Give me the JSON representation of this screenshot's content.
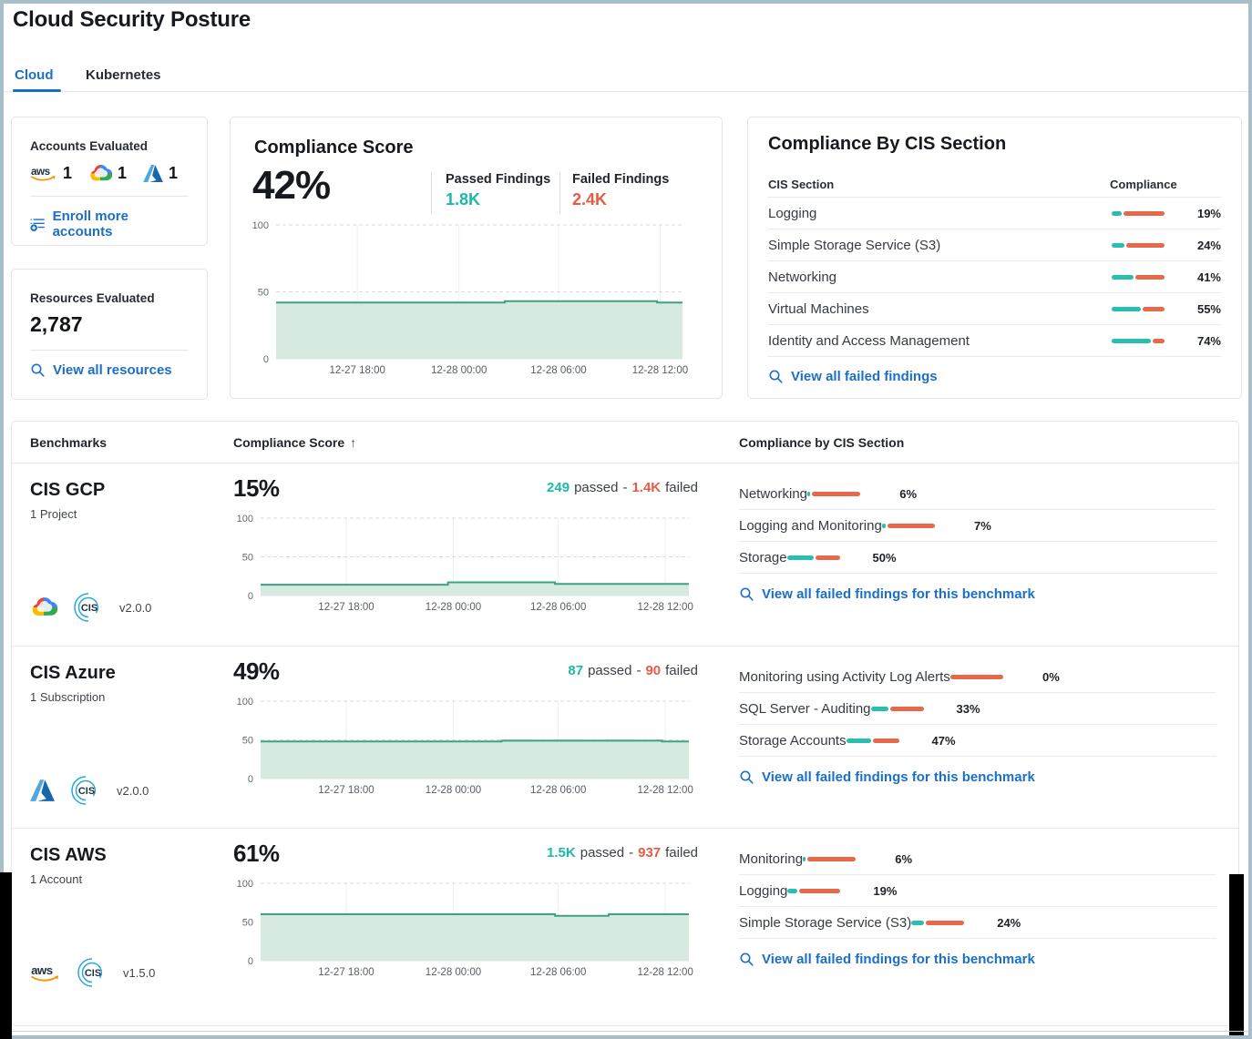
{
  "header": {
    "title": "Cloud Security Posture",
    "tabs": [
      {
        "label": "Cloud",
        "active": true
      },
      {
        "label": "Kubernetes",
        "active": false
      }
    ]
  },
  "accounts_card": {
    "title": "Accounts Evaluated",
    "aws_count": "1",
    "gcp_count": "1",
    "azure_count": "1",
    "enroll_link": "Enroll more accounts"
  },
  "resources_card": {
    "title": "Resources Evaluated",
    "value": "2,787",
    "link": "View all resources"
  },
  "chart_axis": {
    "ymax": 100,
    "yticks": [
      0,
      50,
      100
    ]
  },
  "time_axis": {
    "labels": [
      "12-27 18:00",
      "12-28 00:00",
      "12-28 06:00",
      "12-28 12:00"
    ],
    "fractions": [
      0.2,
      0.45,
      0.695,
      0.945
    ]
  },
  "score_card": {
    "title": "Compliance Score",
    "score": "42%",
    "passed_label": "Passed Findings",
    "passed_value": "1.8K",
    "failed_label": "Failed Findings",
    "failed_value": "2.4K",
    "chart": {
      "type": "area",
      "ylim": [
        0,
        100
      ],
      "values": [
        42,
        42,
        42,
        42,
        42,
        43,
        43,
        43,
        42
      ]
    }
  },
  "cis_card": {
    "title": "Compliance By CIS Section",
    "section_col": "CIS Section",
    "compliance_col": "Compliance",
    "rows": [
      {
        "label": "Logging",
        "pct": 19,
        "pct_label": "19%"
      },
      {
        "label": "Simple Storage Service (S3)",
        "pct": 24,
        "pct_label": "24%"
      },
      {
        "label": "Networking",
        "pct": 41,
        "pct_label": "41%"
      },
      {
        "label": "Virtual Machines",
        "pct": 55,
        "pct_label": "55%"
      },
      {
        "label": "Identity and Access Management",
        "pct": 74,
        "pct_label": "74%"
      }
    ],
    "link": "View all failed findings"
  },
  "benchmarks": {
    "col_benchmarks": "Benchmarks",
    "col_score": "Compliance Score",
    "sort_arrow": "↑",
    "col_sections": "Compliance by CIS Section",
    "passed_word": "passed",
    "separator": "-",
    "failed_word": "failed",
    "link_label": "View all failed findings for this benchmark",
    "rows": [
      {
        "name": "CIS GCP",
        "scope": "1 Project",
        "provider": "gcp",
        "version": "v2.0.0",
        "score": "15%",
        "passed": "249",
        "failed": "1.4K",
        "chart": {
          "type": "area",
          "ylim": [
            0,
            100
          ],
          "values": [
            14,
            14,
            14,
            14,
            17,
            17,
            15,
            15,
            15
          ]
        },
        "sections": [
          {
            "label": "Networking",
            "pct": 6,
            "pct_label": "6%"
          },
          {
            "label": "Logging and Monitoring",
            "pct": 7,
            "pct_label": "7%"
          },
          {
            "label": "Storage",
            "pct": 50,
            "pct_label": "50%"
          }
        ]
      },
      {
        "name": "CIS Azure",
        "scope": "1 Subscription",
        "provider": "azure",
        "version": "v2.0.0",
        "score": "49%",
        "passed": "87",
        "failed": "90",
        "chart": {
          "type": "area",
          "ylim": [
            0,
            100
          ],
          "values": [
            48,
            48,
            48,
            48,
            48,
            49,
            49,
            49,
            48
          ]
        },
        "sections": [
          {
            "label": "Monitoring using Activity Log Alerts",
            "pct": 0,
            "pct_label": "0%"
          },
          {
            "label": "SQL Server - Auditing",
            "pct": 33,
            "pct_label": "33%"
          },
          {
            "label": "Storage Accounts",
            "pct": 47,
            "pct_label": "47%"
          }
        ]
      },
      {
        "name": "CIS AWS",
        "scope": "1 Account",
        "provider": "aws",
        "version": "v1.5.0",
        "score": "61%",
        "passed": "1.5K",
        "failed": "937",
        "chart": {
          "type": "area",
          "ylim": [
            0,
            100
          ],
          "values": [
            60,
            60,
            60,
            60,
            60,
            60,
            58,
            60,
            60
          ]
        },
        "sections": [
          {
            "label": "Monitoring",
            "pct": 6,
            "pct_label": "6%"
          },
          {
            "label": "Logging",
            "pct": 19,
            "pct_label": "19%"
          },
          {
            "label": "Simple Storage Service (S3)",
            "pct": 24,
            "pct_label": "24%"
          }
        ]
      }
    ]
  },
  "colors": {
    "accent_blue": "#1b6fc6",
    "teal": "#1cb9a8",
    "red": "#e85c44",
    "bar_teal": "#29bfae",
    "bar_red": "#e8684a",
    "chart_line": "#3da183",
    "chart_fill": "#d6eadf"
  }
}
